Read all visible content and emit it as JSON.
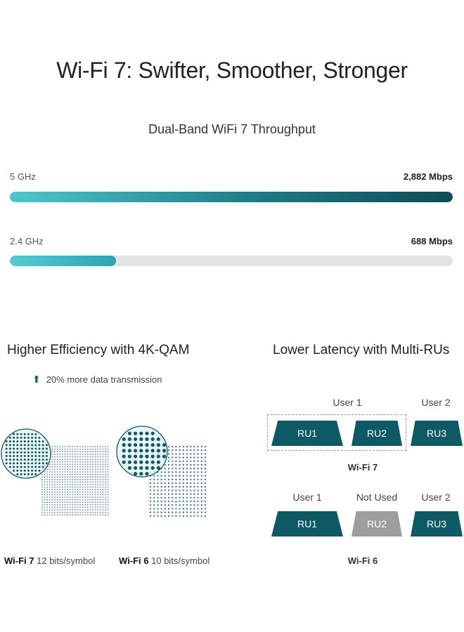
{
  "title": "Wi-Fi 7: Swifter, Smoother, Stronger",
  "throughput": {
    "title": "Dual-Band WiFi 7 Throughput",
    "bands": [
      {
        "label": "5 GHz",
        "value": "2,882 Mbps",
        "fill_fraction": 1.0
      },
      {
        "label": "2.4 GHz",
        "value": "688 Mbps",
        "fill_fraction": 0.24
      }
    ]
  },
  "efficiency": {
    "title": "Higher Efficiency with 4K-QAM",
    "note": "20% more data transmission",
    "note_icon": "arrow-up-icon",
    "wifi7": {
      "name": "Wi-Fi 7",
      "detail": "12 bits/symbol"
    },
    "wifi6": {
      "name": "Wi-Fi 6",
      "detail": "10 bits/symbol"
    }
  },
  "latency": {
    "title": "Lower Latency with Multi-RUs",
    "wifi7": {
      "label": "Wi-Fi 7",
      "user1": "User 1",
      "user2": "User 2",
      "ru": [
        "RU1",
        "RU2",
        "RU3"
      ]
    },
    "wifi6": {
      "label": "Wi-Fi 6",
      "user1": "User 1",
      "not_used": "Not Used",
      "user2": "User 2",
      "ru": [
        "RU1",
        "RU2",
        "RU3"
      ]
    }
  },
  "colors": {
    "teal_dark": "#0e5a64",
    "teal_light": "#4cc7cf",
    "grey": "#9e9e9e",
    "track": "#e3e3e3"
  }
}
